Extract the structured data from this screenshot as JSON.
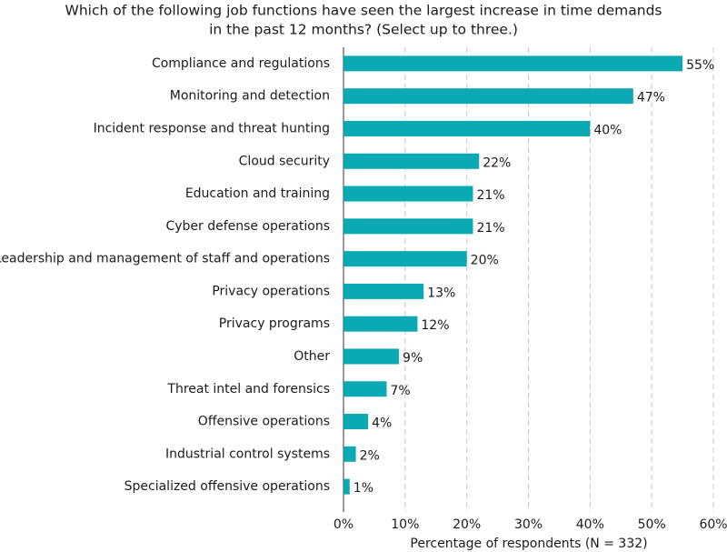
{
  "chart_data": {
    "type": "hbar",
    "title": [
      "Which of the following job functions have seen the largest increase in time demands",
      "in the past 12 months? (Select up to three.)"
    ],
    "x_label": "Percentage of respondents (N = 332)",
    "categories": [
      "Compliance and regulations",
      "Monitoring and detection",
      "Incident response and threat hunting",
      "Cloud security",
      "Education and training",
      "Cyber defense operations",
      "Leadership and management of staff and operations",
      "Privacy operations",
      "Privacy programs",
      "Other",
      "Threat intel and forensics",
      "Offensive operations",
      "Industrial control systems",
      "Specialized offensive operations"
    ],
    "values": [
      55,
      47,
      40,
      22,
      21,
      21,
      20,
      13,
      12,
      9,
      7,
      4,
      2,
      1
    ],
    "value_labels": [
      "55%",
      "47%",
      "40%",
      "22%",
      "21%",
      "21%",
      "20%",
      "13%",
      "12%",
      "9%",
      "7%",
      "4%",
      "2%",
      "1%"
    ],
    "color": "#0aa9b4",
    "xlim": [
      0,
      60
    ],
    "xticks": [
      {
        "value": 0,
        "label": "0%"
      },
      {
        "value": 10,
        "label": "10%"
      },
      {
        "value": 20,
        "label": "20%"
      },
      {
        "value": 30,
        "label": "30%"
      },
      {
        "value": 40,
        "label": "40%"
      },
      {
        "value": 50,
        "label": "50%"
      },
      {
        "value": 60,
        "label": "60%"
      }
    ],
    "grid": true
  }
}
